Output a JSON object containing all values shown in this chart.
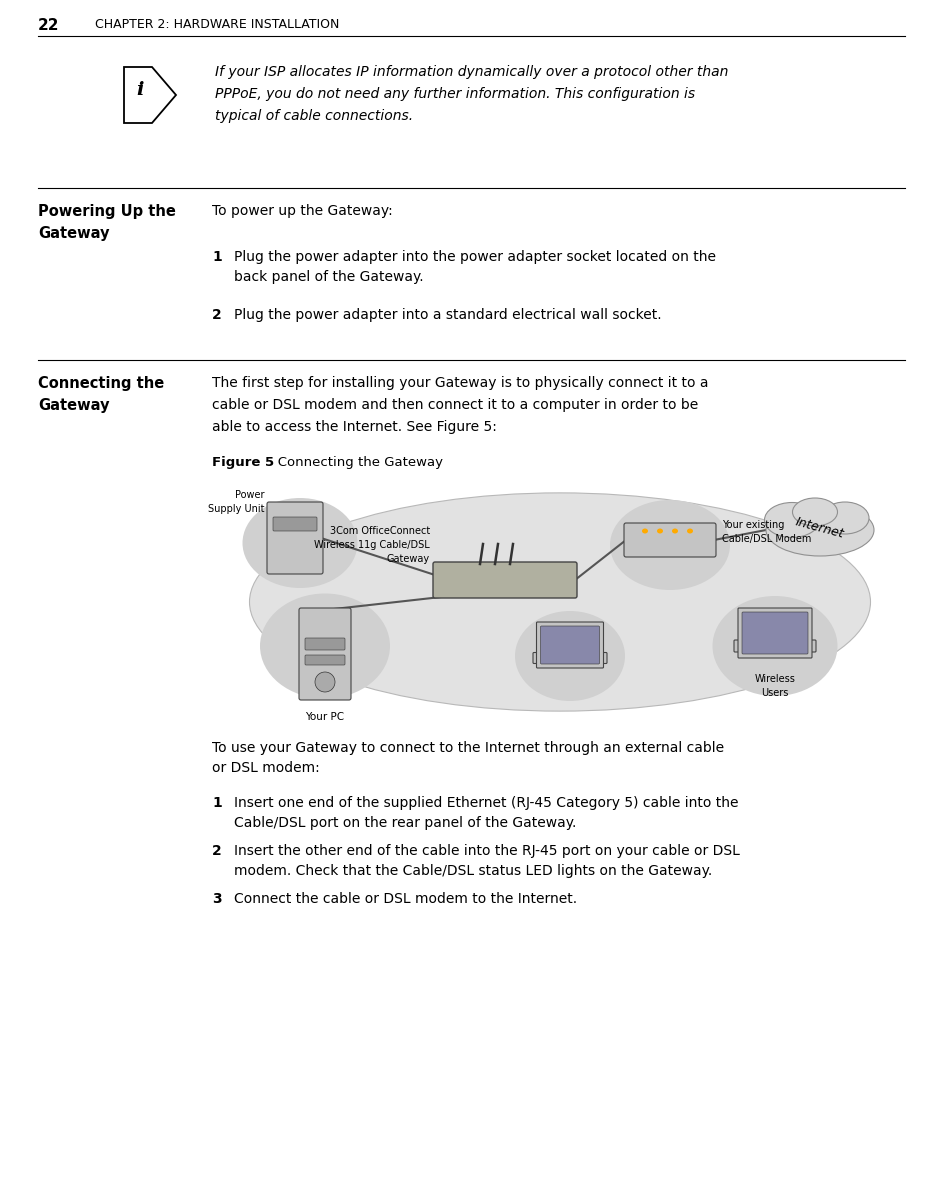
{
  "page_number": "22",
  "chapter_title": "CHAPTER 2: HARDWARE INSTALLATION",
  "bg_color": "#ffffff",
  "text_color": "#000000",
  "info_text_lines": [
    "If your ISP allocates IP information dynamically over a protocol other than",
    "PPPoE, you do not need any further information. This configuration is",
    "typical of cable connections."
  ],
  "s1_heading_lines": [
    "Powering Up the",
    "Gateway"
  ],
  "s1_intro": "To power up the Gateway:",
  "s1_step1": "Plug the power adapter into the power adapter socket located on the\nback panel of the Gateway.",
  "s1_step2": "Plug the power adapter into a standard electrical wall socket.",
  "s2_heading_lines": [
    "Connecting the",
    "Gateway"
  ],
  "s2_intro_lines": [
    "The first step for installing your Gateway is to physically connect it to a",
    "cable or DSL modem and then connect it to a computer in order to be",
    "able to access the Internet. See Figure 5:"
  ],
  "figure_label_bold": "Figure 5",
  "figure_label_normal": "   Connecting the Gateway",
  "s2_post_intro": "To use your Gateway to connect to the Internet through an external cable\nor DSL modem:",
  "s2_step1": "Insert one end of the supplied Ethernet (RJ-45 Category 5) cable into the\nCable/DSL port on the rear panel of the Gateway.",
  "s2_step2": "Insert the other end of the cable into the RJ-45 port on your cable or DSL\nmodem. Check that the Cable/DSL status LED lights on the Gateway.",
  "s2_step3": "Connect the cable or DSL modem to the Internet.",
  "gateway_labels": [
    "3Com OfficeConnect",
    "Wireless 11g Cable/DSL",
    "Gateway"
  ],
  "pc_label": "Your PC",
  "power_labels": [
    "Power",
    "Supply Unit"
  ],
  "modem_labels": [
    "Your existing",
    "Cable/DSL Modem"
  ],
  "internet_label": "Internet",
  "wireless_labels": [
    "Wireless",
    "Users"
  ]
}
